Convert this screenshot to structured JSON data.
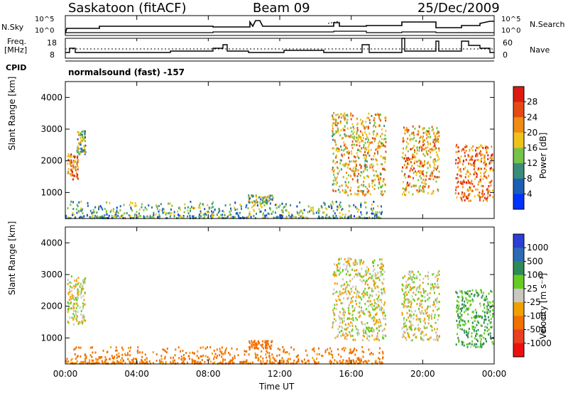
{
  "header": {
    "station": "Saskatoon (fitACF)",
    "beam": "Beam 09",
    "date": "25/Dec/2009"
  },
  "top_panel": {
    "left_label": "N.Sky",
    "right_label": "N.Search",
    "left_ticks": [
      "10^5",
      "10^0"
    ],
    "right_ticks": [
      "10^5",
      "10^0"
    ]
  },
  "freq_panel": {
    "left_label_line1": "Freq.",
    "left_label_line2": "[MHz]",
    "left_ticks": [
      "18",
      "8"
    ],
    "right_ticks": [
      "60",
      "0"
    ],
    "right_label": "Nave"
  },
  "cpid": {
    "label": "CPID",
    "text": "normalsound (fast) -157"
  },
  "colors": {
    "power": [
      "#0033ff",
      "#1a5fb4",
      "#3a8c7a",
      "#77c24a",
      "#eec21a",
      "#ee8c14",
      "#e64a14",
      "#dd1a10"
    ],
    "velocity": [
      "#2b3fd6",
      "#2c6bb2",
      "#2e8b57",
      "#66cc22",
      "#c8c8c0",
      "#f0a000",
      "#f07000",
      "#e84020",
      "#ee1010"
    ]
  },
  "chart_data": [
    {
      "type": "heatmap",
      "title": "Power",
      "ylabel": "Slant Range [km]",
      "ylim": [
        180,
        4500
      ],
      "yticks": [
        "1000",
        "2000",
        "3000",
        "4000"
      ],
      "colorbar_label": "Power [dB]",
      "colorbar_ticks": [
        "4",
        "8",
        "12",
        "16",
        "20",
        "24",
        "28"
      ],
      "colorbar_range": [
        0,
        30
      ],
      "blobs": [
        {
          "t": [
            0.1,
            0.7
          ],
          "r": [
            1400,
            2200
          ],
          "v": 22
        },
        {
          "t": [
            0.6,
            1.1
          ],
          "r": [
            2200,
            2950
          ],
          "v": 12
        },
        {
          "t": [
            0.0,
            17.8
          ],
          "r": [
            180,
            700
          ],
          "v": 10
        },
        {
          "t": [
            10.2,
            11.6
          ],
          "r": [
            650,
            900
          ],
          "v": 14
        },
        {
          "t": [
            14.9,
            17.9
          ],
          "r": [
            900,
            3500
          ],
          "v": 18
        },
        {
          "t": [
            18.8,
            20.9
          ],
          "r": [
            900,
            3100
          ],
          "v": 20
        },
        {
          "t": [
            21.8,
            23.9
          ],
          "r": [
            700,
            2500
          ],
          "v": 24
        }
      ]
    },
    {
      "type": "heatmap",
      "title": "Velocity",
      "ylabel": "Slant Range [km]",
      "xlabel": "Time UT",
      "ylim": [
        180,
        4500
      ],
      "yticks": [
        "1000",
        "2000",
        "3000",
        "4000"
      ],
      "xticks": [
        "00:00",
        "04:00",
        "08:00",
        "12:00",
        "16:00",
        "20:00",
        "00:00"
      ],
      "colorbar_label": "Velocity [m s⁻¹]",
      "colorbar_ticks": [
        "1000",
        "500",
        "100",
        "25",
        "-25",
        "-100",
        "-500",
        "-1000"
      ],
      "blobs": [
        {
          "t": [
            0.1,
            1.1
          ],
          "r": [
            1400,
            2950
          ],
          "v": 0
        },
        {
          "t": [
            0.0,
            17.8
          ],
          "r": [
            180,
            700
          ],
          "v": -150
        },
        {
          "t": [
            10.2,
            11.6
          ],
          "r": [
            650,
            900
          ],
          "v": -250
        },
        {
          "t": [
            14.9,
            17.9
          ],
          "r": [
            900,
            3500
          ],
          "v": 0
        },
        {
          "t": [
            18.8,
            20.9
          ],
          "r": [
            900,
            3100
          ],
          "v": 0
        },
        {
          "t": [
            21.8,
            23.9
          ],
          "r": [
            700,
            2500
          ],
          "v": 100
        }
      ]
    }
  ]
}
